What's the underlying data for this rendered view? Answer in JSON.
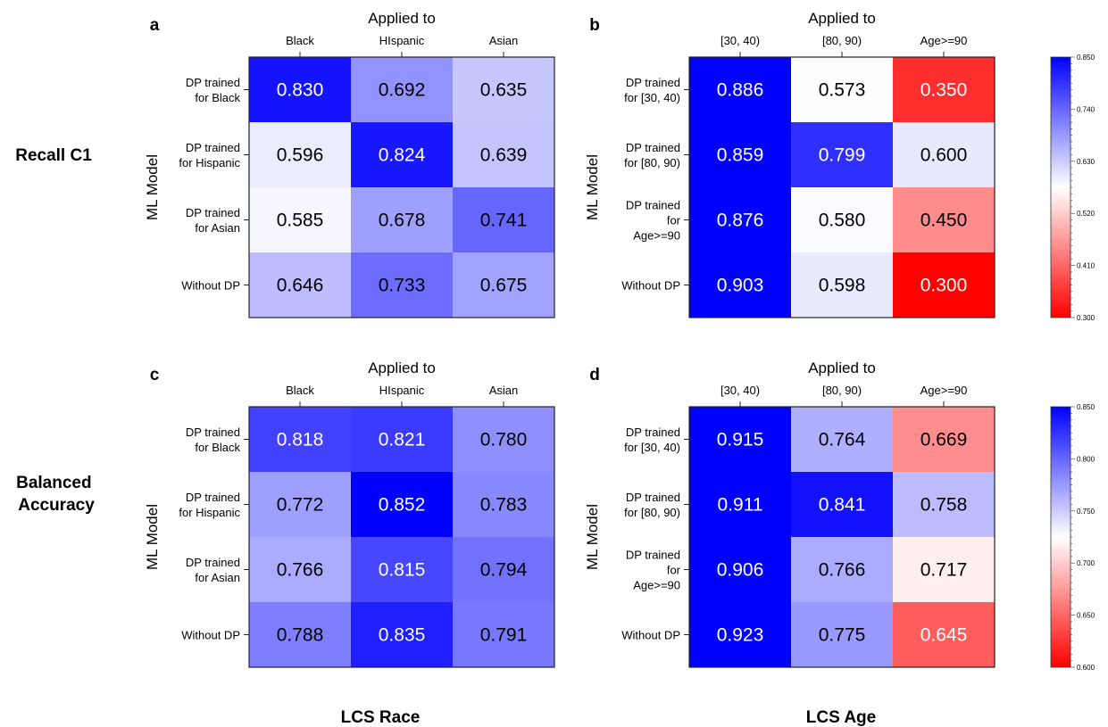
{
  "row_headings": [
    "Recall C1",
    "Balanced Accuracy"
  ],
  "column_headings": [
    "LCS Race",
    "LCS Age"
  ],
  "chart_data": [
    {
      "type": "heatmap",
      "panel": "a",
      "xlabel": "Applied to",
      "ylabel": "ML Model",
      "x_ticks": [
        "Black",
        "HIspanic",
        "Asian"
      ],
      "y_ticks": [
        "DP trained\nfor Black",
        "DP trained\nfor Hispanic",
        "DP trained\nfor Asian",
        "Without DP"
      ],
      "values": [
        [
          0.83,
          0.692,
          0.635
        ],
        [
          0.596,
          0.824,
          0.639
        ],
        [
          0.585,
          0.678,
          0.741
        ],
        [
          0.646,
          0.733,
          0.675
        ]
      ],
      "labels": [
        [
          "0.830",
          "0.692",
          "0.635"
        ],
        [
          "0.596",
          "0.824",
          "0.639"
        ],
        [
          "0.585",
          "0.678",
          "0.741"
        ],
        [
          "0.646",
          "0.733",
          "0.675"
        ]
      ],
      "colorscale": {
        "min": 0.3,
        "max": 0.85,
        "low_color": "#ff0000",
        "mid_color": "#ffffff",
        "high_color": "#0000ff"
      }
    },
    {
      "type": "heatmap",
      "panel": "b",
      "xlabel": "Applied to",
      "ylabel": "ML Model",
      "x_ticks": [
        "[30, 40)",
        "[80, 90)",
        "Age>=90"
      ],
      "y_ticks": [
        "DP trained\nfor [30, 40)",
        "DP trained\nfor [80, 90)",
        "DP trained\nfor\nAge>=90",
        "Without DP"
      ],
      "values": [
        [
          0.886,
          0.573,
          0.35
        ],
        [
          0.859,
          0.799,
          0.6
        ],
        [
          0.876,
          0.58,
          0.45
        ],
        [
          0.903,
          0.598,
          0.3
        ]
      ],
      "labels": [
        [
          "0.886",
          "0.573",
          "0.350"
        ],
        [
          "0.859",
          "0.799",
          "0.600"
        ],
        [
          "0.876",
          "0.580",
          "0.450"
        ],
        [
          "0.903",
          "0.598",
          "0.300"
        ]
      ],
      "colorscale": {
        "min": 0.3,
        "max": 0.85,
        "low_color": "#ff0000",
        "mid_color": "#ffffff",
        "high_color": "#0000ff"
      },
      "colorbar_ticks": [
        "0.850",
        "0.740",
        "0.630",
        "0.520",
        "0.410",
        "0.300"
      ]
    },
    {
      "type": "heatmap",
      "panel": "c",
      "xlabel": "Applied to",
      "ylabel": "ML Model",
      "x_ticks": [
        "Black",
        "HIspanic",
        "Asian"
      ],
      "y_ticks": [
        "DP trained\nfor Black",
        "DP trained\nfor Hispanic",
        "DP trained\nfor Asian",
        "Without DP"
      ],
      "values": [
        [
          0.818,
          0.821,
          0.78
        ],
        [
          0.772,
          0.852,
          0.783
        ],
        [
          0.766,
          0.815,
          0.794
        ],
        [
          0.788,
          0.835,
          0.791
        ]
      ],
      "labels": [
        [
          "0.818",
          "0.821",
          "0.780"
        ],
        [
          "0.772",
          "0.852",
          "0.783"
        ],
        [
          "0.766",
          "0.815",
          "0.794"
        ],
        [
          "0.788",
          "0.835",
          "0.791"
        ]
      ],
      "colorscale": {
        "min": 0.6,
        "max": 0.85,
        "low_color": "#ff0000",
        "mid_color": "#ffffff",
        "high_color": "#0000ff"
      }
    },
    {
      "type": "heatmap",
      "panel": "d",
      "xlabel": "Applied to",
      "ylabel": "ML Model",
      "x_ticks": [
        "[30, 40)",
        "[80, 90)",
        "Age>=90"
      ],
      "y_ticks": [
        "DP trained\nfor [30, 40)",
        "DP trained\nfor [80, 90)",
        "DP trained\nfor\nAge>=90",
        "Without DP"
      ],
      "values": [
        [
          0.915,
          0.764,
          0.669
        ],
        [
          0.911,
          0.841,
          0.758
        ],
        [
          0.906,
          0.766,
          0.717
        ],
        [
          0.923,
          0.775,
          0.645
        ]
      ],
      "labels": [
        [
          "0.915",
          "0.764",
          "0.669"
        ],
        [
          "0.911",
          "0.841",
          "0.758"
        ],
        [
          "0.906",
          "0.766",
          "0.717"
        ],
        [
          "0.923",
          "0.775",
          "0.645"
        ]
      ],
      "colorscale": {
        "min": 0.6,
        "max": 0.85,
        "low_color": "#ff0000",
        "mid_color": "#ffffff",
        "high_color": "#0000ff"
      },
      "colorbar_ticks": [
        "0.850",
        "0.800",
        "0.750",
        "0.700",
        "0.650",
        "0.600"
      ]
    }
  ]
}
